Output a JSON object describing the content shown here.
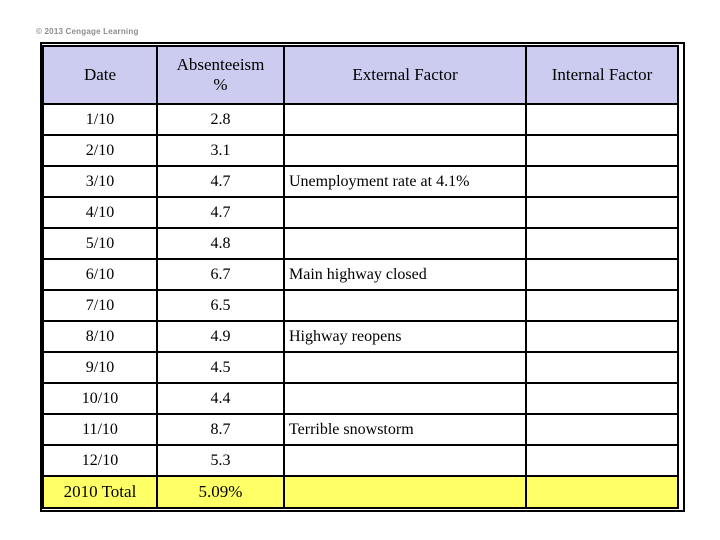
{
  "copyright": "© 2013 Cengage Learning",
  "colors": {
    "page_bg": "#FFFFFF",
    "header_bg": "#CCCCF0",
    "total_row_bg": "#FFFF66",
    "border": "#000000",
    "text": "#000000",
    "copyright_text": "#8C8C8C"
  },
  "table": {
    "columns": [
      {
        "id": "date",
        "label": "Date"
      },
      {
        "id": "absenteeism",
        "label": "Absenteeism\n%"
      },
      {
        "id": "external",
        "label": "External Factor"
      },
      {
        "id": "internal",
        "label": "Internal Factor"
      }
    ],
    "rows": [
      {
        "date": "1/10",
        "absenteeism": "2.8",
        "external": "",
        "internal": ""
      },
      {
        "date": "2/10",
        "absenteeism": "3.1",
        "external": "",
        "internal": ""
      },
      {
        "date": "3/10",
        "absenteeism": "4.7",
        "external": "Unemployment rate at 4.1%",
        "internal": ""
      },
      {
        "date": "4/10",
        "absenteeism": "4.7",
        "external": "",
        "internal": ""
      },
      {
        "date": "5/10",
        "absenteeism": "4.8",
        "external": "",
        "internal": ""
      },
      {
        "date": "6/10",
        "absenteeism": "6.7",
        "external": "Main highway closed",
        "internal": ""
      },
      {
        "date": "7/10",
        "absenteeism": "6.5",
        "external": "",
        "internal": ""
      },
      {
        "date": "8/10",
        "absenteeism": "4.9",
        "external": "Highway reopens",
        "internal": ""
      },
      {
        "date": "9/10",
        "absenteeism": "4.5",
        "external": "",
        "internal": ""
      },
      {
        "date": "10/10",
        "absenteeism": "4.4",
        "external": "",
        "internal": ""
      },
      {
        "date": "11/10",
        "absenteeism": "8.7",
        "external": "Terrible snowstorm",
        "internal": ""
      },
      {
        "date": "12/10",
        "absenteeism": "5.3",
        "external": "",
        "internal": ""
      }
    ],
    "total_row": {
      "date": "2010 Total",
      "absenteeism": "5.09%",
      "external": "",
      "internal": ""
    }
  },
  "chart_data": {
    "type": "table",
    "title": "",
    "categories": [
      "1/10",
      "2/10",
      "3/10",
      "4/10",
      "5/10",
      "6/10",
      "7/10",
      "8/10",
      "9/10",
      "10/10",
      "11/10",
      "12/10"
    ],
    "series": [
      {
        "name": "Absenteeism %",
        "values": [
          2.8,
          3.1,
          4.7,
          4.7,
          4.8,
          6.7,
          6.5,
          4.9,
          4.5,
          4.4,
          8.7,
          5.3
        ]
      }
    ],
    "annotations": [
      {
        "x": "3/10",
        "text": "Unemployment rate at 4.1%"
      },
      {
        "x": "6/10",
        "text": "Main highway closed"
      },
      {
        "x": "8/10",
        "text": "Highway reopens"
      },
      {
        "x": "11/10",
        "text": "Terrible snowstorm"
      }
    ],
    "total_label": "2010 Total",
    "total_value": "5.09%"
  }
}
